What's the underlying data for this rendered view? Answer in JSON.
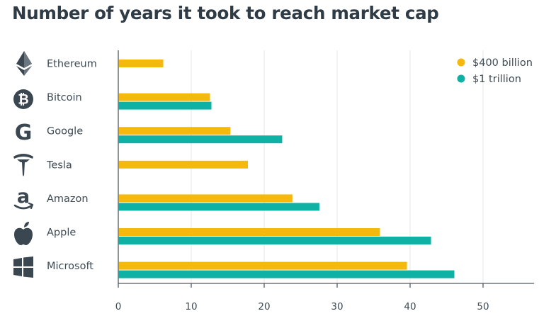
{
  "chart_data": {
    "type": "bar",
    "orientation": "horizontal",
    "title": "Number of years it took to reach market cap",
    "categories": [
      "Ethereum",
      "Bitcoin",
      "Google",
      "Tesla",
      "Amazon",
      "Apple",
      "Microsoft"
    ],
    "category_icons": [
      "ethereum-icon",
      "bitcoin-icon",
      "google-icon",
      "tesla-icon",
      "amazon-icon",
      "apple-icon",
      "windows-icon"
    ],
    "series": [
      {
        "name": "$400 billion",
        "color": "#f5b80c",
        "values": [
          6.1,
          12.5,
          15.3,
          17.7,
          23.8,
          35.8,
          39.5
        ]
      },
      {
        "name": "$1 trillion",
        "color": "#0eb1a3",
        "values": [
          null,
          12.7,
          22.4,
          null,
          27.5,
          42.8,
          46.0
        ]
      }
    ],
    "xlim": [
      0,
      57
    ],
    "xticks": [
      0,
      10,
      20,
      30,
      40,
      50
    ],
    "xlabel": "",
    "ylabel": "",
    "grid": true,
    "legend_position": "top-right"
  }
}
